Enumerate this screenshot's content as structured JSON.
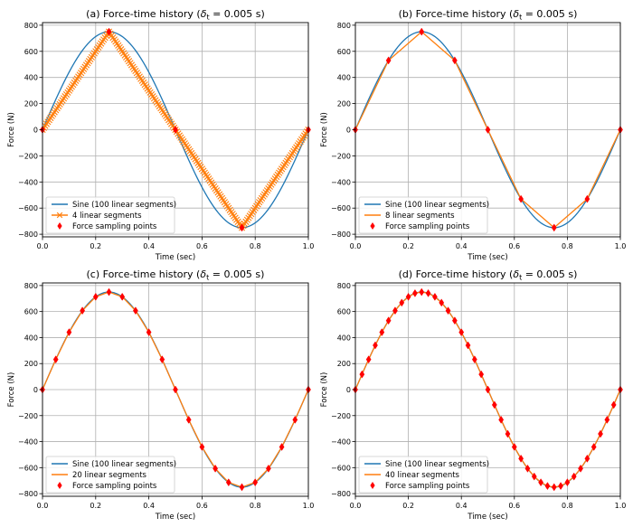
{
  "colors": {
    "sine": "#1f77b4",
    "linear": "#ff7f0e",
    "points": "#ff0000",
    "grid": "#b0b0b0"
  },
  "chart_data": [
    {
      "type": "line",
      "title": "(a) Force-time history (δt = 0.005 s)",
      "title_main": "(a) Force-time history (",
      "title_delta": "δ",
      "title_sub": "t",
      "title_tail": " = 0.005 s)",
      "xlabel": "Time (sec)",
      "ylabel": "Force (N)",
      "xlim": [
        0,
        1
      ],
      "ylim": [
        -820,
        820
      ],
      "xticks": [
        0,
        0.2,
        0.4,
        0.6,
        0.8,
        1
      ],
      "xtick_labels": [
        "0.0",
        "0.2",
        "0.4",
        "0.6",
        "0.8",
        "1.0"
      ],
      "yticks": [
        -800,
        -600,
        -400,
        -200,
        0,
        200,
        400,
        600,
        800
      ],
      "ytick_labels": [
        "−800",
        "−600",
        "−400",
        "−200",
        "0",
        "200",
        "400",
        "600",
        "800"
      ],
      "grid": true,
      "legend_position": "lower-left",
      "amplitude": 750,
      "series": [
        {
          "name": "Sine (100 linear segments)",
          "segments": 100,
          "kind": "sine"
        },
        {
          "name": "4 linear segments",
          "segments": 4,
          "kind": "linear",
          "marker": "x"
        },
        {
          "name": "Force sampling points",
          "segments": 4,
          "kind": "points",
          "marker": "diamond"
        }
      ]
    },
    {
      "type": "line",
      "title": "(b) Force-time history (δt = 0.005 s)",
      "title_main": "(b) Force-time history (",
      "title_delta": "δ",
      "title_sub": "t",
      "title_tail": " = 0.005 s)",
      "xlabel": "Time (sec)",
      "ylabel": "Force (N)",
      "xlim": [
        0,
        1
      ],
      "ylim": [
        -820,
        820
      ],
      "xticks": [
        0,
        0.2,
        0.4,
        0.6,
        0.8,
        1
      ],
      "xtick_labels": [
        "0.0",
        "0.2",
        "0.4",
        "0.6",
        "0.8",
        "1.0"
      ],
      "yticks": [
        -800,
        -600,
        -400,
        -200,
        0,
        200,
        400,
        600,
        800
      ],
      "ytick_labels": [
        "−800",
        "−600",
        "−400",
        "−200",
        "0",
        "200",
        "400",
        "600",
        "800"
      ],
      "grid": true,
      "legend_position": "lower-left",
      "amplitude": 750,
      "series": [
        {
          "name": "Sine (100 linear segments)",
          "segments": 100,
          "kind": "sine"
        },
        {
          "name": "8 linear segments",
          "segments": 8,
          "kind": "linear"
        },
        {
          "name": "Force sampling points",
          "segments": 8,
          "kind": "points",
          "marker": "diamond"
        }
      ]
    },
    {
      "type": "line",
      "title": "(c) Force-time history (δt = 0.005 s)",
      "title_main": "(c) Force-time history (",
      "title_delta": "δ",
      "title_sub": "t",
      "title_tail": " = 0.005 s)",
      "xlabel": "Time (sec)",
      "ylabel": "Force (N)",
      "xlim": [
        0,
        1
      ],
      "ylim": [
        -820,
        820
      ],
      "xticks": [
        0,
        0.2,
        0.4,
        0.6,
        0.8,
        1
      ],
      "xtick_labels": [
        "0.0",
        "0.2",
        "0.4",
        "0.6",
        "0.8",
        "1.0"
      ],
      "yticks": [
        -800,
        -600,
        -400,
        -200,
        0,
        200,
        400,
        600,
        800
      ],
      "ytick_labels": [
        "−800",
        "−600",
        "−400",
        "−200",
        "0",
        "200",
        "400",
        "600",
        "800"
      ],
      "grid": true,
      "legend_position": "lower-left",
      "amplitude": 750,
      "series": [
        {
          "name": "Sine (100 linear segments)",
          "segments": 100,
          "kind": "sine"
        },
        {
          "name": "20 linear segments",
          "segments": 20,
          "kind": "linear"
        },
        {
          "name": "Force sampling points",
          "segments": 20,
          "kind": "points",
          "marker": "diamond"
        }
      ]
    },
    {
      "type": "line",
      "title": "(d) Force-time history (δt = 0.005 s)",
      "title_main": "(d) Force-time history (",
      "title_delta": "δ",
      "title_sub": "t",
      "title_tail": " = 0.005 s)",
      "xlabel": "Time (sec)",
      "ylabel": "Force (N)",
      "xlim": [
        0,
        1
      ],
      "ylim": [
        -820,
        820
      ],
      "xticks": [
        0,
        0.2,
        0.4,
        0.6,
        0.8,
        1
      ],
      "xtick_labels": [
        "0.0",
        "0.2",
        "0.4",
        "0.6",
        "0.8",
        "1.0"
      ],
      "yticks": [
        -800,
        -600,
        -400,
        -200,
        0,
        200,
        400,
        600,
        800
      ],
      "ytick_labels": [
        "−800",
        "−600",
        "−400",
        "−200",
        "0",
        "200",
        "400",
        "600",
        "800"
      ],
      "grid": true,
      "legend_position": "lower-left",
      "amplitude": 750,
      "series": [
        {
          "name": "Sine (100 linear segments)",
          "segments": 100,
          "kind": "sine"
        },
        {
          "name": "40 linear segments",
          "segments": 40,
          "kind": "linear"
        },
        {
          "name": "Force sampling points",
          "segments": 40,
          "kind": "points",
          "marker": "diamond"
        }
      ]
    }
  ]
}
